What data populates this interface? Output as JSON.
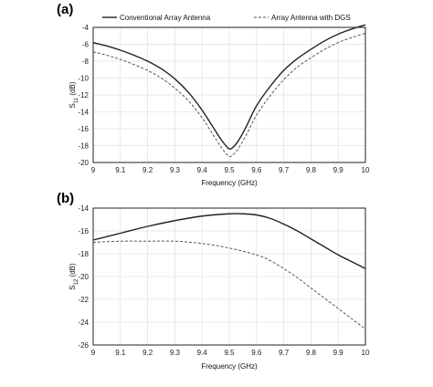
{
  "chart_data": [
    {
      "type": "line",
      "panel_label": "(a)",
      "xlabel": "Frequency (GHz)",
      "ylabel_base": "S",
      "ylabel_sub": "11",
      "ylabel_unit": " (dB)",
      "xlim": [
        9,
        10
      ],
      "ylim": [
        -20,
        -4
      ],
      "xticks": [
        "9",
        "9.1",
        "9.2",
        "9.3",
        "9.4",
        "9.5",
        "9.6",
        "9.7",
        "9.8",
        "9.9",
        "10"
      ],
      "yticks": [
        "-4",
        "-6",
        "-8",
        "-10",
        "-12",
        "-14",
        "-16",
        "-18",
        "-20"
      ],
      "grid": true,
      "legend": "top",
      "series": [
        {
          "name": "Conventional Array Antenna",
          "style": "solid",
          "color": "#222222",
          "x": [
            9.0,
            9.05,
            9.1,
            9.15,
            9.2,
            9.25,
            9.3,
            9.35,
            9.4,
            9.44,
            9.47,
            9.49,
            9.5,
            9.51,
            9.53,
            9.56,
            9.6,
            9.65,
            9.7,
            9.75,
            9.8,
            9.85,
            9.9,
            9.95,
            10.0
          ],
          "y": [
            -5.8,
            -6.2,
            -6.7,
            -7.3,
            -8.0,
            -8.9,
            -10.1,
            -11.7,
            -13.8,
            -15.8,
            -17.3,
            -18.1,
            -18.4,
            -18.3,
            -17.6,
            -15.9,
            -13.3,
            -11.0,
            -9.1,
            -7.7,
            -6.6,
            -5.6,
            -4.8,
            -4.2,
            -3.7
          ]
        },
        {
          "name": "Array Antenna with DGS",
          "style": "dashed",
          "color": "#555555",
          "x": [
            9.0,
            9.05,
            9.1,
            9.15,
            9.2,
            9.25,
            9.3,
            9.35,
            9.4,
            9.44,
            9.47,
            9.49,
            9.5,
            9.51,
            9.53,
            9.56,
            9.6,
            9.65,
            9.7,
            9.75,
            9.8,
            9.85,
            9.9,
            9.95,
            10.0
          ],
          "y": [
            -6.9,
            -7.3,
            -7.8,
            -8.4,
            -9.1,
            -10.0,
            -11.2,
            -12.7,
            -14.7,
            -16.7,
            -18.2,
            -19.0,
            -19.3,
            -19.2,
            -18.5,
            -16.9,
            -14.4,
            -12.1,
            -10.2,
            -8.7,
            -7.6,
            -6.6,
            -5.8,
            -5.2,
            -4.7
          ]
        }
      ]
    },
    {
      "type": "line",
      "panel_label": "(b)",
      "xlabel": "Frequency (GHz)",
      "ylabel_base": "S",
      "ylabel_sub": "12",
      "ylabel_unit": " (dB)",
      "xlim": [
        9,
        10
      ],
      "ylim": [
        -26,
        -14
      ],
      "xticks": [
        "9",
        "9.1",
        "9.2",
        "9.3",
        "9.4",
        "9.5",
        "9.6",
        "9.7",
        "9.8",
        "9.9",
        "10"
      ],
      "yticks": [
        "-14",
        "-16",
        "-18",
        "-20",
        "-22",
        "-24",
        "-26"
      ],
      "grid": true,
      "series": [
        {
          "name": "Conventional Array Antenna",
          "style": "solid",
          "color": "#222222",
          "x": [
            9.0,
            9.1,
            9.2,
            9.3,
            9.4,
            9.5,
            9.55,
            9.6,
            9.65,
            9.7,
            9.75,
            9.8,
            9.85,
            9.9,
            9.95,
            10.0
          ],
          "y": [
            -16.8,
            -16.2,
            -15.6,
            -15.1,
            -14.7,
            -14.5,
            -14.5,
            -14.6,
            -14.9,
            -15.4,
            -16.0,
            -16.7,
            -17.4,
            -18.1,
            -18.7,
            -19.3
          ],
          "show_in_legend": false
        },
        {
          "name": "Array Antenna with DGS",
          "style": "dashed",
          "color": "#555555",
          "x": [
            9.0,
            9.1,
            9.2,
            9.3,
            9.4,
            9.5,
            9.6,
            9.65,
            9.7,
            9.75,
            9.8,
            9.85,
            9.9,
            9.95,
            10.0
          ],
          "y": [
            -17.0,
            -16.9,
            -16.9,
            -16.9,
            -17.1,
            -17.5,
            -18.1,
            -18.6,
            -19.3,
            -20.1,
            -21.0,
            -21.9,
            -22.8,
            -23.7,
            -24.6
          ],
          "show_in_legend": false
        }
      ]
    }
  ]
}
